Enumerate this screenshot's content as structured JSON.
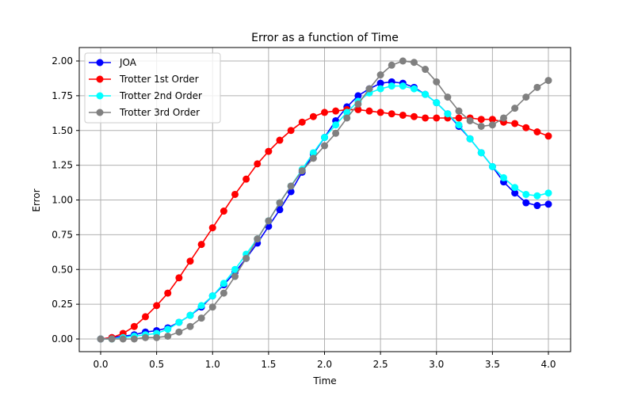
{
  "chart_data": {
    "type": "line",
    "title": "Error as a function of Time",
    "xlabel": "Time",
    "ylabel": "Error",
    "xlim": [
      -0.2,
      4.2
    ],
    "ylim": [
      -0.1,
      2.1
    ],
    "xticks": [
      "0.0",
      "0.5",
      "1.0",
      "1.5",
      "2.0",
      "2.5",
      "3.0",
      "3.5",
      "4.0"
    ],
    "yticks": [
      "0.00",
      "0.25",
      "0.50",
      "0.75",
      "1.00",
      "1.25",
      "1.50",
      "1.75",
      "2.00"
    ],
    "grid": true,
    "legend_position": "upper left",
    "x": [
      0.0,
      0.1,
      0.2,
      0.3,
      0.4,
      0.5,
      0.6,
      0.7,
      0.8,
      0.9,
      1.0,
      1.1,
      1.2,
      1.3,
      1.4,
      1.5,
      1.6,
      1.7,
      1.8,
      1.9,
      2.0,
      2.1,
      2.2,
      2.3,
      2.4,
      2.5,
      2.6,
      2.7,
      2.8,
      2.9,
      3.0,
      3.1,
      3.2,
      3.3,
      3.4,
      3.5,
      3.6,
      3.7,
      3.8,
      3.9,
      4.0
    ],
    "series": [
      {
        "name": "JOA",
        "color": "#0000ff",
        "values": [
          0.0,
          0.01,
          0.02,
          0.03,
          0.05,
          0.06,
          0.08,
          0.12,
          0.17,
          0.23,
          0.31,
          0.39,
          0.48,
          0.58,
          0.69,
          0.81,
          0.93,
          1.06,
          1.2,
          1.33,
          1.45,
          1.57,
          1.67,
          1.75,
          1.8,
          1.84,
          1.85,
          1.84,
          1.81,
          1.76,
          1.7,
          1.62,
          1.53,
          1.44,
          1.34,
          1.24,
          1.13,
          1.05,
          0.98,
          0.96,
          0.97
        ]
      },
      {
        "name": "Trotter 1st Order",
        "color": "#ff0000",
        "values": [
          0.0,
          0.01,
          0.04,
          0.09,
          0.16,
          0.24,
          0.33,
          0.44,
          0.56,
          0.68,
          0.8,
          0.92,
          1.04,
          1.15,
          1.26,
          1.35,
          1.43,
          1.5,
          1.56,
          1.6,
          1.63,
          1.64,
          1.65,
          1.65,
          1.64,
          1.63,
          1.62,
          1.61,
          1.6,
          1.59,
          1.59,
          1.59,
          1.59,
          1.59,
          1.58,
          1.58,
          1.56,
          1.55,
          1.52,
          1.49,
          1.46
        ]
      },
      {
        "name": "Trotter 2nd Order",
        "color": "#00ffff",
        "values": [
          0.0,
          0.0,
          0.01,
          0.02,
          0.03,
          0.04,
          0.07,
          0.12,
          0.17,
          0.24,
          0.31,
          0.4,
          0.5,
          0.61,
          0.72,
          0.85,
          0.98,
          1.1,
          1.22,
          1.34,
          1.45,
          1.54,
          1.63,
          1.71,
          1.77,
          1.8,
          1.82,
          1.82,
          1.8,
          1.76,
          1.7,
          1.62,
          1.54,
          1.44,
          1.34,
          1.24,
          1.16,
          1.09,
          1.04,
          1.03,
          1.05
        ]
      },
      {
        "name": "Trotter 3rd Order",
        "color": "#808080",
        "values": [
          0.0,
          0.0,
          0.0,
          0.0,
          0.01,
          0.01,
          0.02,
          0.05,
          0.09,
          0.15,
          0.23,
          0.33,
          0.45,
          0.58,
          0.72,
          0.85,
          0.98,
          1.1,
          1.21,
          1.3,
          1.39,
          1.48,
          1.59,
          1.69,
          1.8,
          1.9,
          1.97,
          2.0,
          1.99,
          1.94,
          1.85,
          1.74,
          1.64,
          1.57,
          1.53,
          1.54,
          1.59,
          1.66,
          1.74,
          1.81,
          1.86
        ]
      }
    ]
  }
}
